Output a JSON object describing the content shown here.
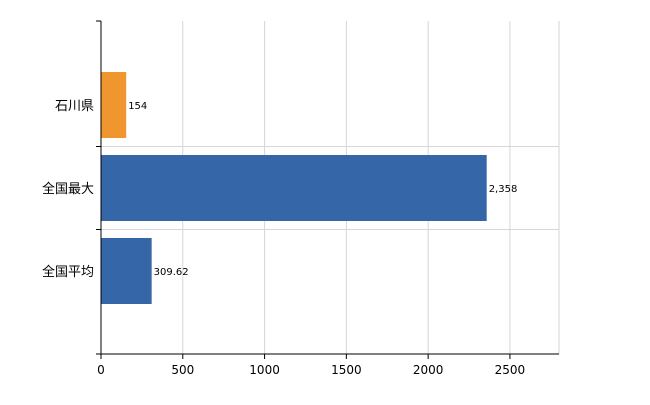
{
  "chart_data": {
    "type": "bar",
    "orientation": "horizontal",
    "title": "",
    "xlabel": "",
    "ylabel": "",
    "categories": [
      "石川県",
      "全国最大",
      "全国平均"
    ],
    "values": [
      154,
      2358,
      309.62
    ],
    "data_labels": [
      "154",
      "2,358",
      "309.62"
    ],
    "bar_colors": [
      "#f0962e",
      "#3566a8",
      "#3566a8"
    ],
    "xlim": [
      0,
      2800
    ],
    "xticks": [
      0,
      500,
      1000,
      1500,
      2000,
      2500
    ],
    "grid": true,
    "legend": "none"
  }
}
